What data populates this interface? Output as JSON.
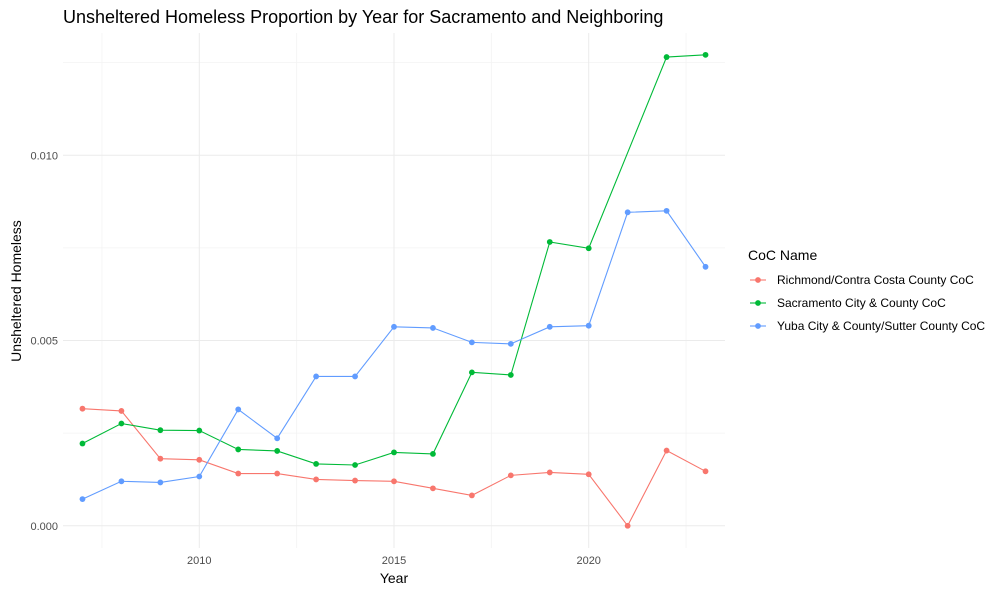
{
  "chart_data": {
    "type": "line",
    "title": "Unsheltered Homeless Proportion by Year for Sacramento and Neighboring",
    "xlabel": "Year",
    "ylabel": "Unsheltered Homeless",
    "xlim": [
      2006.5,
      2023.5
    ],
    "ylim": [
      -0.0006,
      0.0133
    ],
    "x_ticks": [
      2010,
      2015,
      2020
    ],
    "x_tick_labels": [
      "2010",
      "2015",
      "2020"
    ],
    "y_ticks": [
      0.0,
      0.005,
      0.01
    ],
    "y_tick_labels": [
      "0.000",
      "0.005",
      "0.010"
    ],
    "grid": true,
    "legend": {
      "title": "CoC Name",
      "position": "right"
    },
    "x": [
      2007,
      2008,
      2009,
      2010,
      2011,
      2012,
      2013,
      2014,
      2015,
      2016,
      2017,
      2018,
      2019,
      2020,
      2021,
      2022,
      2023
    ],
    "series": [
      {
        "name": "Richmond/Contra Costa County CoC",
        "color": "#F8766D",
        "values": [
          0.00316,
          0.0031,
          0.00181,
          0.00178,
          0.00141,
          0.00141,
          0.00125,
          0.00122,
          0.0012,
          0.00101,
          0.00082,
          0.00136,
          0.00144,
          0.00139,
          0.0,
          0.00203,
          0.00147
        ]
      },
      {
        "name": "Sacramento City & County CoC",
        "color": "#00BA38",
        "values": [
          0.00222,
          0.00276,
          0.00258,
          0.00257,
          0.00206,
          0.00202,
          0.00167,
          0.00164,
          0.00198,
          0.00194,
          0.00414,
          0.00407,
          0.00766,
          0.00749,
          null,
          0.01265,
          0.01271
        ]
      },
      {
        "name": "Yuba City & County/Sutter County CoC",
        "color": "#619CFF",
        "values": [
          0.00072,
          0.0012,
          0.00117,
          0.00133,
          0.00314,
          0.00236,
          0.00403,
          0.00403,
          0.00537,
          0.00534,
          0.00495,
          0.00491,
          0.00537,
          0.0054,
          0.00846,
          0.0085,
          0.00699
        ]
      }
    ]
  }
}
